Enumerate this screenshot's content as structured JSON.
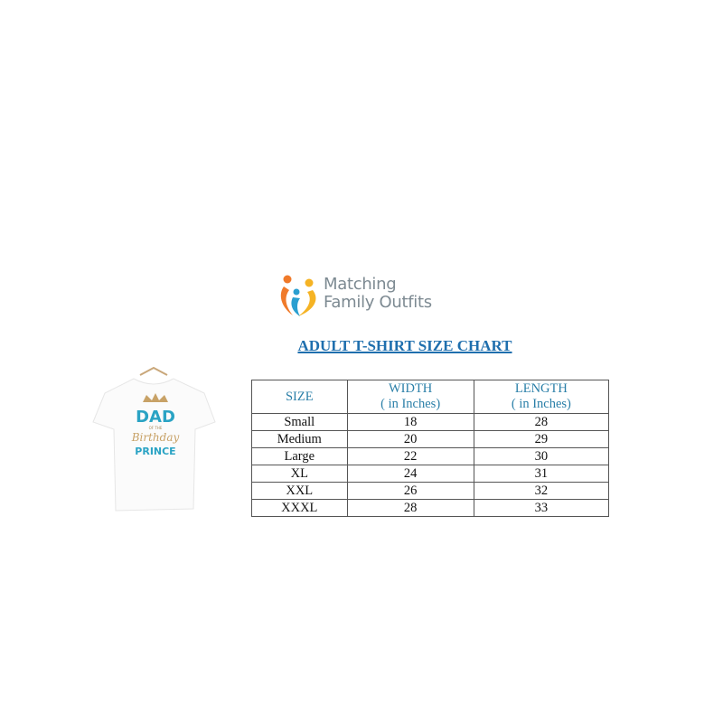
{
  "logo": {
    "line1": "Matching",
    "line2": "Family Outfits"
  },
  "title": "ADULT T-SHIRT SIZE CHART",
  "shirt": {
    "line1": "DAD",
    "line2": "OF THE",
    "line3": "Birthday",
    "line4": "PRINCE"
  },
  "colors": {
    "title": "#1f6fae",
    "header": "#2a7fa8",
    "logo_orange": "#f07a2a",
    "logo_blue": "#2a9fd0",
    "logo_yellow": "#f5b324"
  },
  "table": {
    "headers": [
      {
        "line1": "SIZE",
        "line2": ""
      },
      {
        "line1": "WIDTH",
        "line2": "( in Inches)"
      },
      {
        "line1": "LENGTH",
        "line2": "( in Inches)"
      }
    ],
    "rows": [
      [
        "Small",
        "18",
        "28"
      ],
      [
        "Medium",
        "20",
        "29"
      ],
      [
        "Large",
        "22",
        "30"
      ],
      [
        "XL",
        "24",
        "31"
      ],
      [
        "XXL",
        "26",
        "32"
      ],
      [
        "XXXL",
        "28",
        "33"
      ]
    ]
  }
}
